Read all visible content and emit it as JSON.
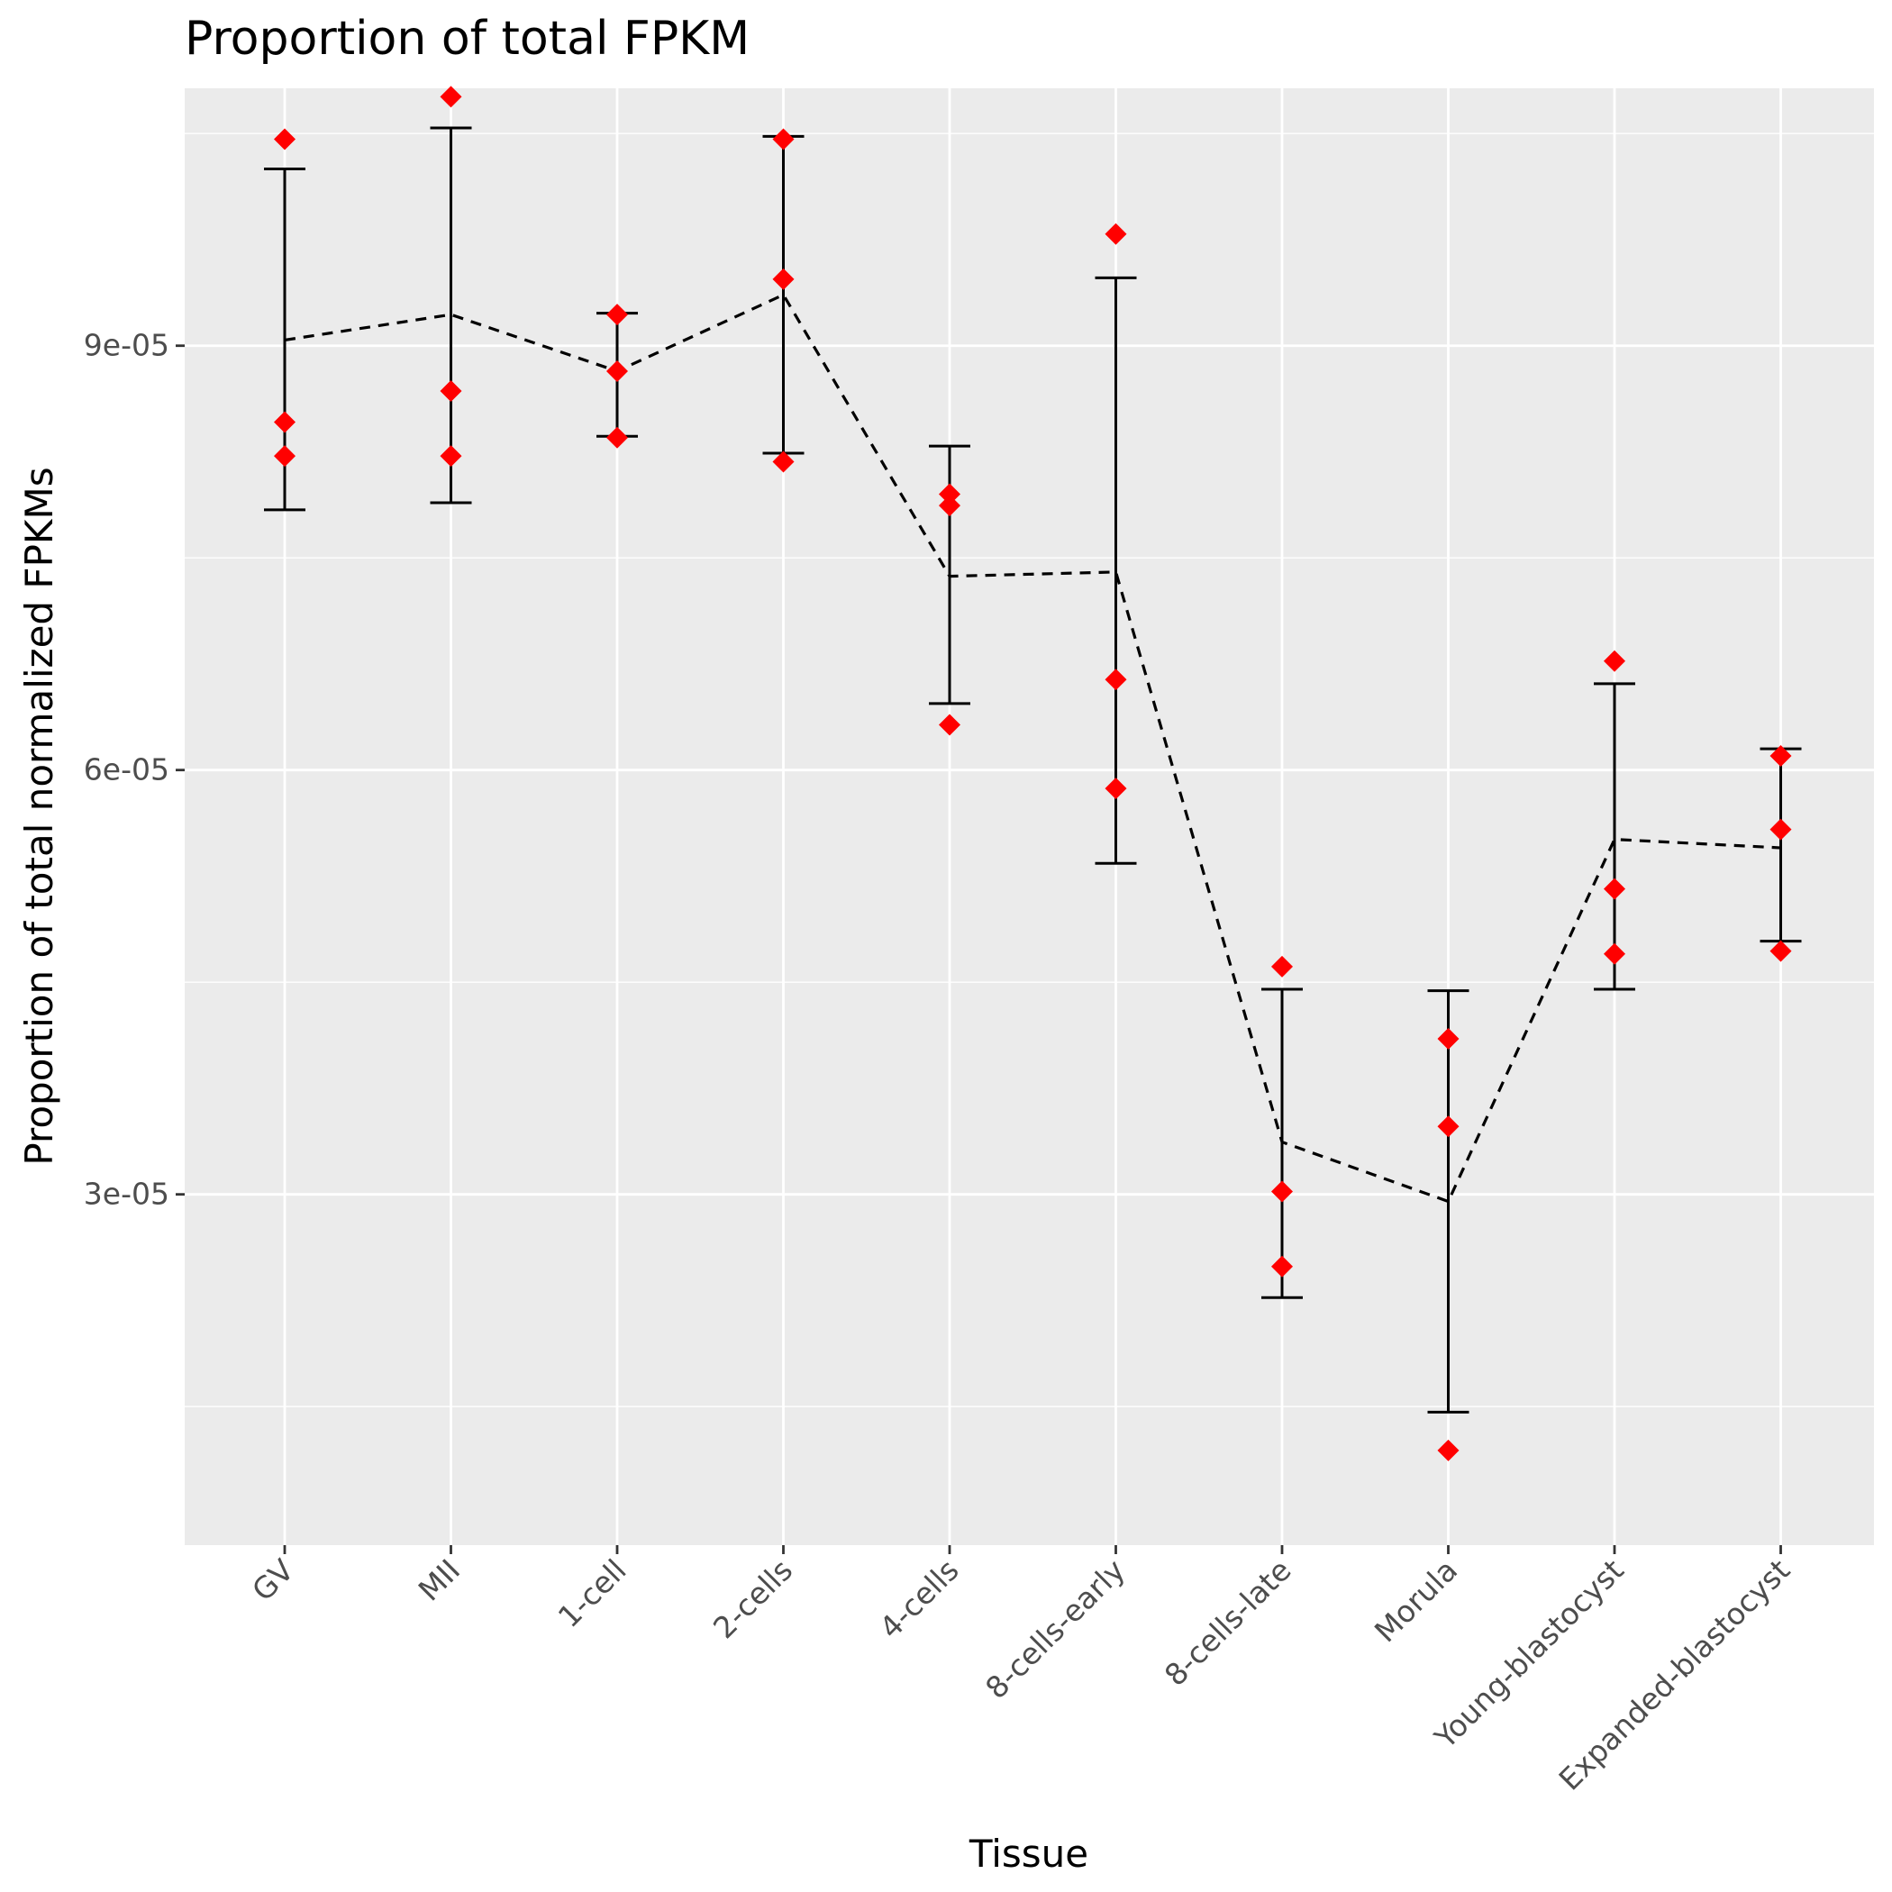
{
  "chart_data": {
    "type": "scatter",
    "title": "Proportion of total FPKM",
    "xlabel": "Tissue",
    "ylabel": "Proportion of total normalized FPKMs",
    "categories": [
      "GV",
      "MII",
      "1-cell",
      "2-cells",
      "4-cells",
      "8-cells-early",
      "8-cells-late",
      "Morula",
      "Young-blastocyst",
      "Expanded-blastocyst"
    ],
    "ylim": [
      5.2e-06,
      0.0001082
    ],
    "y_ticks": [
      3e-05,
      6e-05,
      9e-05
    ],
    "y_tick_labels": [
      "3e-05",
      "6e-05",
      "9e-05"
    ],
    "grid": true,
    "legend": "none",
    "colors": {
      "panel": "#ebebeb",
      "grid": "#ffffff",
      "points": "#ff0000",
      "errorbars": "#000000",
      "mean_line": "#000000"
    },
    "points": [
      [
        0.0001046,
        8.46e-05,
        8.22e-05
      ],
      [
        0.0001076,
        8.68e-05,
        8.22e-05
      ],
      [
        9.22e-05,
        8.82e-05,
        8.35e-05
      ],
      [
        0.0001046,
        9.47e-05,
        8.18e-05
      ],
      [
        7.95e-05,
        7.87e-05,
        6.32e-05
      ],
      [
        9.79e-05,
        6.64e-05,
        5.87e-05
      ],
      [
        4.61e-05,
        3.02e-05,
        2.49e-05
      ],
      [
        4.1e-05,
        3.48e-05,
        1.19e-05
      ],
      [
        6.77e-05,
        5.16e-05,
        4.7e-05
      ],
      [
        6.1e-05,
        5.58e-05,
        4.72e-05
      ]
    ],
    "means": [
      9.04e-05,
      9.22e-05,
      8.82e-05,
      9.36e-05,
      7.37e-05,
      7.4e-05,
      3.37e-05,
      2.95e-05,
      5.51e-05,
      5.45e-05
    ],
    "error_bars": [
      {
        "low": 7.84e-05,
        "high": 0.0001025
      },
      {
        "low": 7.89e-05,
        "high": 0.0001054
      },
      {
        "low": 8.36e-05,
        "high": 9.23e-05
      },
      {
        "low": 8.24e-05,
        "high": 0.0001048
      },
      {
        "low": 6.47e-05,
        "high": 8.29e-05
      },
      {
        "low": 5.34e-05,
        "high": 9.48e-05
      },
      {
        "low": 2.27e-05,
        "high": 4.45e-05
      },
      {
        "low": 1.46e-05,
        "high": 4.44e-05
      },
      {
        "low": 4.45e-05,
        "high": 6.61e-05
      },
      {
        "low": 4.79e-05,
        "high": 6.15e-05
      }
    ]
  }
}
